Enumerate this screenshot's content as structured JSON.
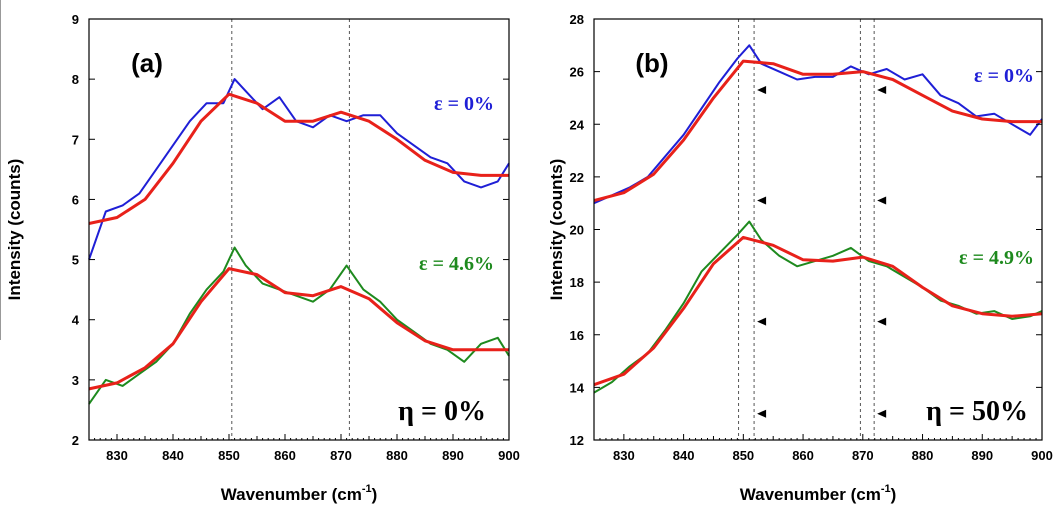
{
  "chart_data": [
    {
      "type": "line",
      "panel_label": "(a)",
      "xlabel": "Wavenumber (cm",
      "xlabel_sup": "-1",
      "xlabel_end": ")",
      "ylabel": "Intensity (counts)",
      "xlim": [
        825,
        900
      ],
      "ylim": [
        2,
        9
      ],
      "xticks": [
        830,
        840,
        850,
        860,
        870,
        880,
        890,
        900
      ],
      "yticks": [
        2,
        3,
        4,
        5,
        6,
        7,
        8,
        9
      ],
      "vlines": [
        850.5,
        871.5
      ],
      "markers": [],
      "series": [
        {
          "name": "ε = 0%",
          "role": "data",
          "color": "#1f1fd6",
          "x": [
            825,
            828,
            831,
            834,
            837,
            840,
            843,
            846,
            849,
            851,
            853,
            856,
            859,
            862,
            865,
            868,
            871,
            874,
            877,
            880,
            883,
            886,
            889,
            892,
            895,
            898,
            900
          ],
          "y": [
            5.0,
            5.8,
            5.9,
            6.1,
            6.5,
            6.9,
            7.3,
            7.6,
            7.6,
            8.0,
            7.8,
            7.5,
            7.7,
            7.3,
            7.2,
            7.4,
            7.3,
            7.4,
            7.4,
            7.1,
            6.9,
            6.7,
            6.6,
            6.3,
            6.2,
            6.3,
            6.6
          ]
        },
        {
          "name": "",
          "role": "fit",
          "color": "#e8211a",
          "x": [
            825,
            830,
            835,
            840,
            845,
            850,
            855,
            860,
            865,
            870,
            875,
            880,
            885,
            890,
            895,
            900
          ],
          "y": [
            5.6,
            5.7,
            6.0,
            6.6,
            7.3,
            7.75,
            7.6,
            7.3,
            7.3,
            7.45,
            7.3,
            7.0,
            6.65,
            6.45,
            6.4,
            6.4
          ]
        },
        {
          "name": "ε = 4.6%",
          "role": "data",
          "color": "#1e8a1e",
          "x": [
            825,
            828,
            831,
            834,
            837,
            840,
            843,
            846,
            849,
            851,
            853,
            856,
            859,
            862,
            865,
            868,
            871,
            874,
            877,
            880,
            883,
            886,
            889,
            892,
            895,
            898,
            900
          ],
          "y": [
            2.6,
            3.0,
            2.9,
            3.1,
            3.3,
            3.6,
            4.1,
            4.5,
            4.8,
            5.2,
            4.9,
            4.6,
            4.5,
            4.4,
            4.3,
            4.5,
            4.9,
            4.5,
            4.3,
            4.0,
            3.8,
            3.6,
            3.5,
            3.3,
            3.6,
            3.7,
            3.4
          ]
        },
        {
          "name": "",
          "role": "fit",
          "color": "#e8211a",
          "x": [
            825,
            830,
            835,
            840,
            845,
            850,
            855,
            860,
            865,
            870,
            875,
            880,
            885,
            890,
            895,
            900
          ],
          "y": [
            2.85,
            2.95,
            3.2,
            3.6,
            4.3,
            4.85,
            4.75,
            4.45,
            4.4,
            4.55,
            4.35,
            3.95,
            3.65,
            3.5,
            3.5,
            3.5
          ]
        }
      ],
      "annotations": [
        {
          "text": "ε = 0%",
          "color": "#1f1fd6"
        },
        {
          "text": "ε = 4.6%",
          "color": "#1e8a1e"
        },
        {
          "text": "η = 0%",
          "color": "#000000"
        }
      ]
    },
    {
      "type": "line",
      "panel_label": "(b)",
      "xlabel": "Wavenumber (cm",
      "xlabel_sup": "-1",
      "xlabel_end": ")",
      "ylabel": "Intensity (counts)",
      "xlim": [
        825,
        900
      ],
      "ylim": [
        12,
        28
      ],
      "xticks": [
        830,
        840,
        850,
        860,
        870,
        880,
        890,
        900
      ],
      "yticks": [
        12,
        14,
        16,
        18,
        20,
        22,
        24,
        26,
        28
      ],
      "vlines": [
        849.2,
        851.8,
        869.6,
        871.9
      ],
      "markers": [
        {
          "x": 851.8,
          "y": 25.3
        },
        {
          "x": 871.9,
          "y": 25.3
        },
        {
          "x": 851.8,
          "y": 21.1
        },
        {
          "x": 871.9,
          "y": 21.1
        },
        {
          "x": 851.8,
          "y": 16.5
        },
        {
          "x": 871.9,
          "y": 16.5
        },
        {
          "x": 851.8,
          "y": 13.0
        },
        {
          "x": 871.9,
          "y": 13.0
        }
      ],
      "series": [
        {
          "name": "ε = 0%",
          "role": "data",
          "color": "#1f1fd6",
          "x": [
            825,
            828,
            831,
            834,
            837,
            840,
            843,
            846,
            849,
            851,
            853,
            856,
            859,
            862,
            865,
            868,
            871,
            874,
            877,
            880,
            883,
            886,
            889,
            892,
            895,
            898,
            900
          ],
          "y": [
            21.0,
            21.3,
            21.6,
            22.0,
            22.8,
            23.6,
            24.6,
            25.6,
            26.5,
            27.0,
            26.3,
            26.0,
            25.7,
            25.8,
            25.8,
            26.2,
            25.9,
            26.1,
            25.7,
            25.9,
            25.1,
            24.8,
            24.3,
            24.4,
            24.0,
            23.6,
            24.2
          ]
        },
        {
          "name": "",
          "role": "fit",
          "color": "#e8211a",
          "x": [
            825,
            830,
            835,
            840,
            845,
            850,
            855,
            860,
            865,
            870,
            875,
            880,
            885,
            890,
            895,
            900
          ],
          "y": [
            21.1,
            21.4,
            22.1,
            23.4,
            25.0,
            26.4,
            26.3,
            25.9,
            25.9,
            26.0,
            25.7,
            25.1,
            24.5,
            24.2,
            24.1,
            24.1
          ]
        },
        {
          "name": "ε = 4.9%",
          "role": "data",
          "color": "#1e8a1e",
          "x": [
            825,
            828,
            831,
            834,
            837,
            840,
            843,
            846,
            849,
            851,
            853,
            856,
            859,
            862,
            865,
            868,
            871,
            874,
            877,
            880,
            883,
            886,
            889,
            892,
            895,
            898,
            900
          ],
          "y": [
            13.8,
            14.2,
            14.8,
            15.3,
            16.2,
            17.2,
            18.4,
            19.1,
            19.8,
            20.3,
            19.6,
            19.0,
            18.6,
            18.8,
            19.0,
            19.3,
            18.8,
            18.6,
            18.2,
            17.8,
            17.3,
            17.1,
            16.8,
            16.9,
            16.6,
            16.7,
            16.9
          ]
        },
        {
          "name": "",
          "role": "fit",
          "color": "#e8211a",
          "x": [
            825,
            830,
            835,
            840,
            845,
            850,
            855,
            860,
            865,
            870,
            875,
            880,
            885,
            890,
            895,
            900
          ],
          "y": [
            14.1,
            14.5,
            15.5,
            17.0,
            18.7,
            19.7,
            19.4,
            18.85,
            18.8,
            18.95,
            18.6,
            17.8,
            17.1,
            16.8,
            16.7,
            16.8
          ]
        }
      ],
      "annotations": [
        {
          "text": "ε = 0%",
          "color": "#1f1fd6"
        },
        {
          "text": "ε = 4.9%",
          "color": "#1e8a1e"
        },
        {
          "text": "η = 50%",
          "color": "#000000"
        }
      ]
    }
  ]
}
